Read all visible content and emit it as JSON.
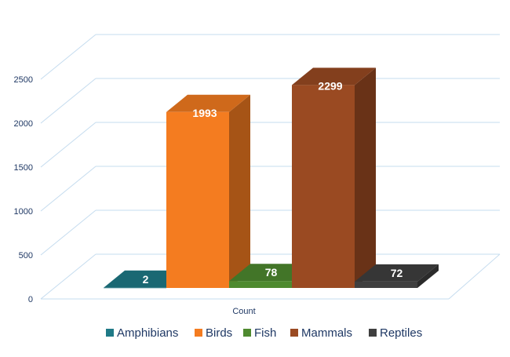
{
  "chart_data": {
    "type": "bar",
    "title": "",
    "xlabel": "",
    "ylabel": "",
    "categories": [
      "Count"
    ],
    "ylim": [
      0,
      2500
    ],
    "yticks": [
      0,
      500,
      1000,
      1500,
      2000,
      2500
    ],
    "grid": true,
    "legend_position": "bottom",
    "three_d": true,
    "series": [
      {
        "name": "Amphibians",
        "values": [
          2
        ],
        "color": "#1f7a87"
      },
      {
        "name": "Birds",
        "values": [
          1993
        ],
        "color": "#f47c20"
      },
      {
        "name": "Fish",
        "values": [
          78
        ],
        "color": "#4e8a2f"
      },
      {
        "name": "Mammals",
        "values": [
          2299
        ],
        "color": "#9a4a22"
      },
      {
        "name": "Reptiles",
        "values": [
          72
        ],
        "color": "#3f3f3f"
      }
    ]
  }
}
